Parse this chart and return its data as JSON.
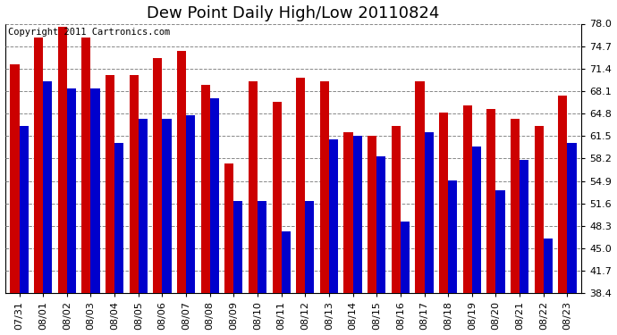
{
  "title": "Dew Point Daily High/Low 20110824",
  "copyright": "Copyright 2011 Cartronics.com",
  "dates": [
    "07/31",
    "08/01",
    "08/02",
    "08/03",
    "08/04",
    "08/05",
    "08/06",
    "08/07",
    "08/08",
    "08/09",
    "08/10",
    "08/11",
    "08/12",
    "08/13",
    "08/14",
    "08/15",
    "08/16",
    "08/17",
    "08/18",
    "08/19",
    "08/20",
    "08/21",
    "08/22",
    "08/23"
  ],
  "highs": [
    72.0,
    76.0,
    77.5,
    76.0,
    70.5,
    70.5,
    73.0,
    74.0,
    69.0,
    57.5,
    69.5,
    66.5,
    70.0,
    69.5,
    62.0,
    61.5,
    63.0,
    69.5,
    65.0,
    66.0,
    65.5,
    64.0,
    63.0,
    67.5
  ],
  "lows": [
    63.0,
    69.5,
    68.5,
    68.5,
    60.5,
    64.0,
    64.0,
    64.5,
    67.0,
    52.0,
    52.0,
    47.5,
    52.0,
    61.0,
    61.5,
    58.5,
    49.0,
    62.0,
    55.0,
    60.0,
    53.5,
    58.0,
    46.5,
    60.5
  ],
  "bar_color_high": "#cc0000",
  "bar_color_low": "#0000cc",
  "bg_color": "#ffffff",
  "plot_bg_color": "#ffffff",
  "grid_color": "#888888",
  "ymin": 38.4,
  "ymax": 78.0,
  "yticks": [
    38.4,
    41.7,
    45.0,
    48.3,
    51.6,
    54.9,
    58.2,
    61.5,
    64.8,
    68.1,
    71.4,
    74.7,
    78.0
  ],
  "title_fontsize": 13,
  "copyright_fontsize": 7.5,
  "tick_fontsize": 8,
  "bar_width": 0.38
}
